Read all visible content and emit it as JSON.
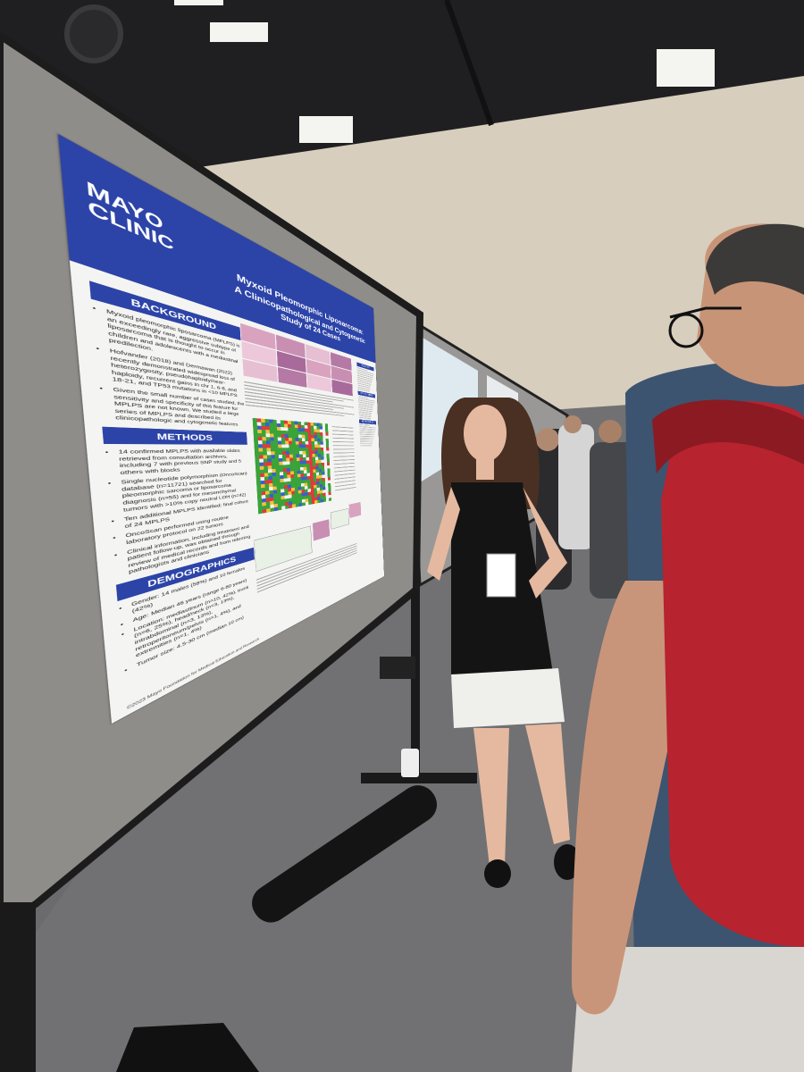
{
  "poster": {
    "logo": [
      "MAYO",
      "CLINIC"
    ],
    "title": "Myxoid Pleomorphic Liposarcoma:",
    "subtitle": "A Clinicopathological and Cytogenetic Study of 24 Cases",
    "sections": [
      {
        "heading": "BACKGROUND",
        "items": [
          "Myxoid pleomorphic liposarcoma (MPLPS) is an exceedingly rare, aggressive subtype of liposarcoma that is thought to occur in children and adolescents with a mediastinal predilection.",
          "Hofvander (2018) and Dermawan (2022) recently demonstrated widespread loss of heterozygosity, pseudohaploidy/near-haploidy, recurrent gains in chr 1, 6-8, and 18-21, and TP53 mutations in <10 MPLPS",
          "Given the small number of cases studied, the sensitivity and specificity of this feature for MPLPS are not known. We studied a large series of MPLPS and described its clinicopathologic and cytogenetic features"
        ]
      },
      {
        "heading": "METHODS",
        "items": [
          "14 confirmed MPLPS with available slides retrieved from consultation archives, including 7 with previous SNP study and 5 others with blocks",
          "Single nucleotide polymorphism (OncoScan) database (n=11721) searched for pleomorphic sarcoma or liposarcoma diagnosis (n=55) and for mesenchymal tumors with >10% copy neutral LOH (n=42)",
          "Ten additional MPLPS identified; final cohort of 24 MPLPS",
          "OncoScan performed using routine laboratory protocol on 22 tumors",
          "Clinical information, including treatment and patient follow-up, was obtained through review of medical records and from referring pathologists and clinicians"
        ]
      },
      {
        "heading": "DEMOGRAPHICS",
        "items": [
          "Gender: 14 males (58%) and 10 females (42%)",
          "Age: Median 46 years (range 6-80 years)",
          "Location: mediastinum (n=10, 42%), trunk (n=6, 25%), head/neck (n=3, 13%), intrabdominal (n=3, 13%), retroperitoneum/pelvis (n=1, 4%), and extremities (n=1, 4%)",
          "Tumor size: 4.5-30 cm (median 10 cm)"
        ]
      }
    ],
    "right_headings": [
      "RESULTS",
      "CONCLUSIONS",
      "REFERENCES"
    ],
    "footer": "©2023 Mayo Foundation for Medical Education and Research"
  }
}
